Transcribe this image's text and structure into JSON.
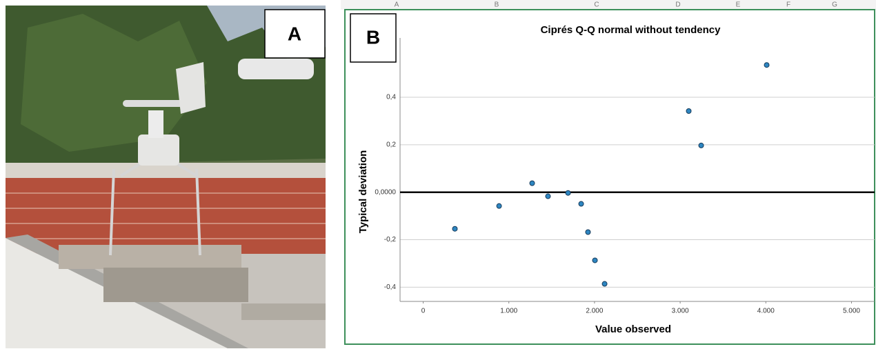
{
  "panels": [
    "A",
    "B"
  ],
  "spreadsheet": {
    "columns": [
      "A",
      "B",
      "C",
      "D",
      "E",
      "F",
      "G"
    ]
  },
  "chart_data": {
    "type": "scatter",
    "title": "Ciprés Q-Q normal without tendency",
    "xlabel": "Value observed",
    "ylabel": "Typical deviation",
    "x": [
      370,
      886,
      1272,
      1457,
      1691,
      1844,
      1924,
      2005,
      2118,
      3100,
      3245,
      4010
    ],
    "values": [
      -0.154,
      -0.058,
      0.038,
      -0.017,
      -0.003,
      -0.049,
      -0.168,
      -0.287,
      -0.386,
      0.342,
      0.197,
      0.536
    ],
    "color": "#2e86c1",
    "xlim": [
      -270,
      5270
    ],
    "xticks": [
      0,
      {
        "value": 1000,
        "label": "1.000"
      },
      {
        "value": 2000,
        "label": "2.000"
      },
      {
        "value": 3000,
        "label": "3.000"
      },
      {
        "value": 4000,
        "label": "4.000"
      },
      {
        "value": 5000,
        "label": "5.000"
      }
    ],
    "ylim": [
      -0.46,
      0.65
    ],
    "yticks": [
      {
        "value": -0.4,
        "label": "-0,4"
      },
      {
        "value": -0.2,
        "label": "-0,2"
      },
      {
        "value": 0,
        "label": "0,0000"
      },
      {
        "value": 0.2,
        "label": "0,2"
      },
      {
        "value": 0.4,
        "label": "0,4"
      }
    ],
    "reference_line": 0,
    "grid": true
  }
}
